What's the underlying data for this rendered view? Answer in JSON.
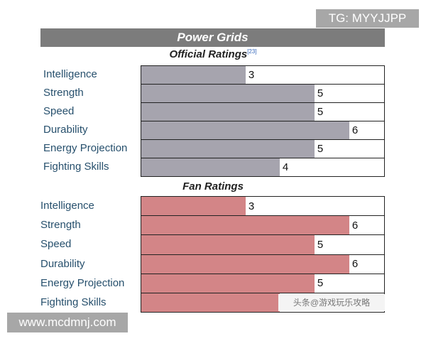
{
  "badges": {
    "tg": "TG: MYYJJPP",
    "site": "www.mcdmnj.com"
  },
  "watermark": "头条@游戏玩乐攻略",
  "chart_data": [
    {
      "type": "bar",
      "title": "Power Grids",
      "subtitle": "Official Ratings",
      "citation": "[23]",
      "orientation": "horizontal",
      "xlim": [
        0,
        7
      ],
      "categories": [
        "Intelligence",
        "Strength",
        "Speed",
        "Durability",
        "Energy Projection",
        "Fighting Skills"
      ],
      "values": [
        3,
        5,
        5,
        6,
        5,
        4
      ],
      "bar_color": "#a6a4ae"
    },
    {
      "type": "bar",
      "subtitle": "Fan Ratings",
      "orientation": "horizontal",
      "xlim": [
        0,
        7
      ],
      "categories": [
        "Intelligence",
        "Strength",
        "Speed",
        "Durability",
        "Energy Projection",
        "Fighting Skills"
      ],
      "values": [
        3,
        6,
        5,
        6,
        5,
        4
      ],
      "bar_color": "#d38587"
    }
  ]
}
